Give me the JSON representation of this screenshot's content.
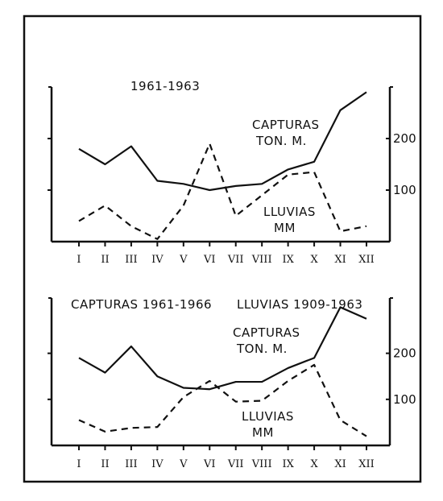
{
  "chart_data": [
    {
      "type": "line",
      "title": "1961-1963",
      "categories": [
        "I",
        "II",
        "III",
        "IV",
        "V",
        "VI",
        "VII",
        "VIII",
        "IX",
        "X",
        "XI",
        "XII"
      ],
      "series": [
        {
          "name": "CAPTURAS TON. M.",
          "style": "solid",
          "values": [
            180,
            150,
            185,
            118,
            112,
            100,
            108,
            112,
            140,
            155,
            255,
            290
          ]
        },
        {
          "name": "LLUVIAS MM",
          "style": "dashed",
          "values": [
            40,
            70,
            30,
            5,
            70,
            190,
            50,
            90,
            130,
            135,
            20,
            30
          ]
        }
      ],
      "right_axis": {
        "ticks": [
          100,
          200
        ]
      },
      "ylim": [
        0,
        300
      ],
      "label_capturas": [
        "CAPTURAS",
        "TON. M."
      ],
      "label_lluvias": [
        "LLUVIAS",
        "MM"
      ]
    },
    {
      "type": "line",
      "title_left": "CAPTURAS 1961-1966",
      "title_right": "LLUVIAS 1909-1963",
      "categories": [
        "I",
        "II",
        "III",
        "IV",
        "V",
        "VI",
        "VII",
        "VIII",
        "IX",
        "X",
        "XI",
        "XII"
      ],
      "series": [
        {
          "name": "CAPTURAS TON. M.",
          "style": "solid",
          "values": [
            190,
            158,
            215,
            150,
            125,
            122,
            138,
            138,
            168,
            190,
            300,
            275
          ]
        },
        {
          "name": "LLUVIAS MM",
          "style": "dashed",
          "values": [
            55,
            30,
            38,
            40,
            105,
            140,
            95,
            97,
            140,
            175,
            55,
            20
          ]
        }
      ],
      "right_axis": {
        "ticks": [
          100,
          200
        ]
      },
      "ylim": [
        0,
        320
      ],
      "label_capturas": [
        "CAPTURAS",
        "TON. M."
      ],
      "label_lluvias": [
        "LLUVIAS",
        "MM"
      ]
    }
  ]
}
